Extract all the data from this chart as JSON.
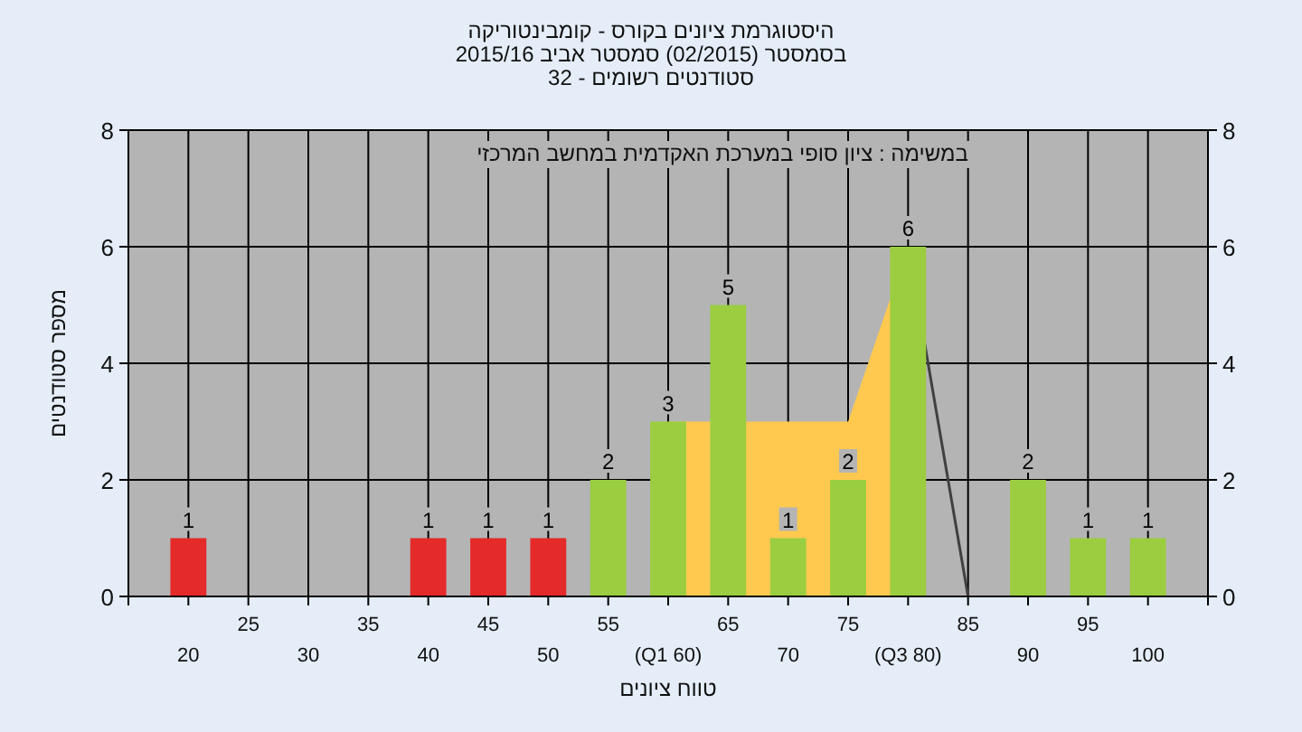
{
  "chart_data": {
    "type": "bar",
    "title": "היסטוגרמת ציונים בקורס - קומבינטוריקה",
    "subtitle": "בסמסטר (02/2015) סמסטר אביב 2015/16\nסטודנטים רשומים - 32",
    "xlabel": "טווח ציונים",
    "ylabel": "מספר סטודנטים",
    "annotations": [
      "במשימה : ציון סופי במערכת האקדמית במחשב המרכזי"
    ],
    "categories": [
      "20",
      "25",
      "30",
      "35",
      "40",
      "45",
      "50",
      "55",
      "(Q1 60)",
      "65",
      "70",
      "75",
      "(Q3 80)",
      "85",
      "90",
      "95",
      "100"
    ],
    "series": [
      {
        "type": "area",
        "color": "#ffc94f",
        "values": [
          null,
          null,
          null,
          null,
          null,
          null,
          null,
          null,
          3,
          null,
          3,
          3,
          6,
          null,
          null,
          null,
          null
        ]
      },
      {
        "type": "line",
        "color": "#404040",
        "values": [
          null,
          null,
          null,
          null,
          null,
          null,
          null,
          null,
          null,
          null,
          null,
          null,
          6,
          0,
          null,
          null,
          null
        ]
      },
      {
        "colors": [
          "#e52a2a",
          "#9acd40",
          "#9acd40",
          "#9acd40",
          "#e52a2a",
          "#e52a2a",
          "#e52a2a",
          "#9acd40",
          "#9acd40",
          "#9acd40",
          "#9acd40",
          "#9acd40",
          "#9acd40",
          "#9acd40",
          "#9acd40",
          "#9acd40",
          "#9acd40"
        ],
        "values": [
          1,
          0,
          0,
          0,
          1,
          1,
          1,
          2,
          3,
          5,
          1,
          2,
          6,
          0,
          2,
          1,
          1
        ],
        "value_labels": [
          "1",
          null,
          null,
          null,
          "1",
          "1",
          "1",
          "2",
          "3",
          "5",
          "1",
          "2",
          "6",
          null,
          "2",
          "1",
          "1"
        ]
      }
    ],
    "ylim": [
      0,
      8
    ],
    "yticks": [
      0,
      2,
      4,
      6,
      8
    ],
    "y2lim": [
      0,
      8
    ],
    "y2ticks": [
      0,
      2,
      4,
      6,
      8
    ],
    "grid": true
  }
}
